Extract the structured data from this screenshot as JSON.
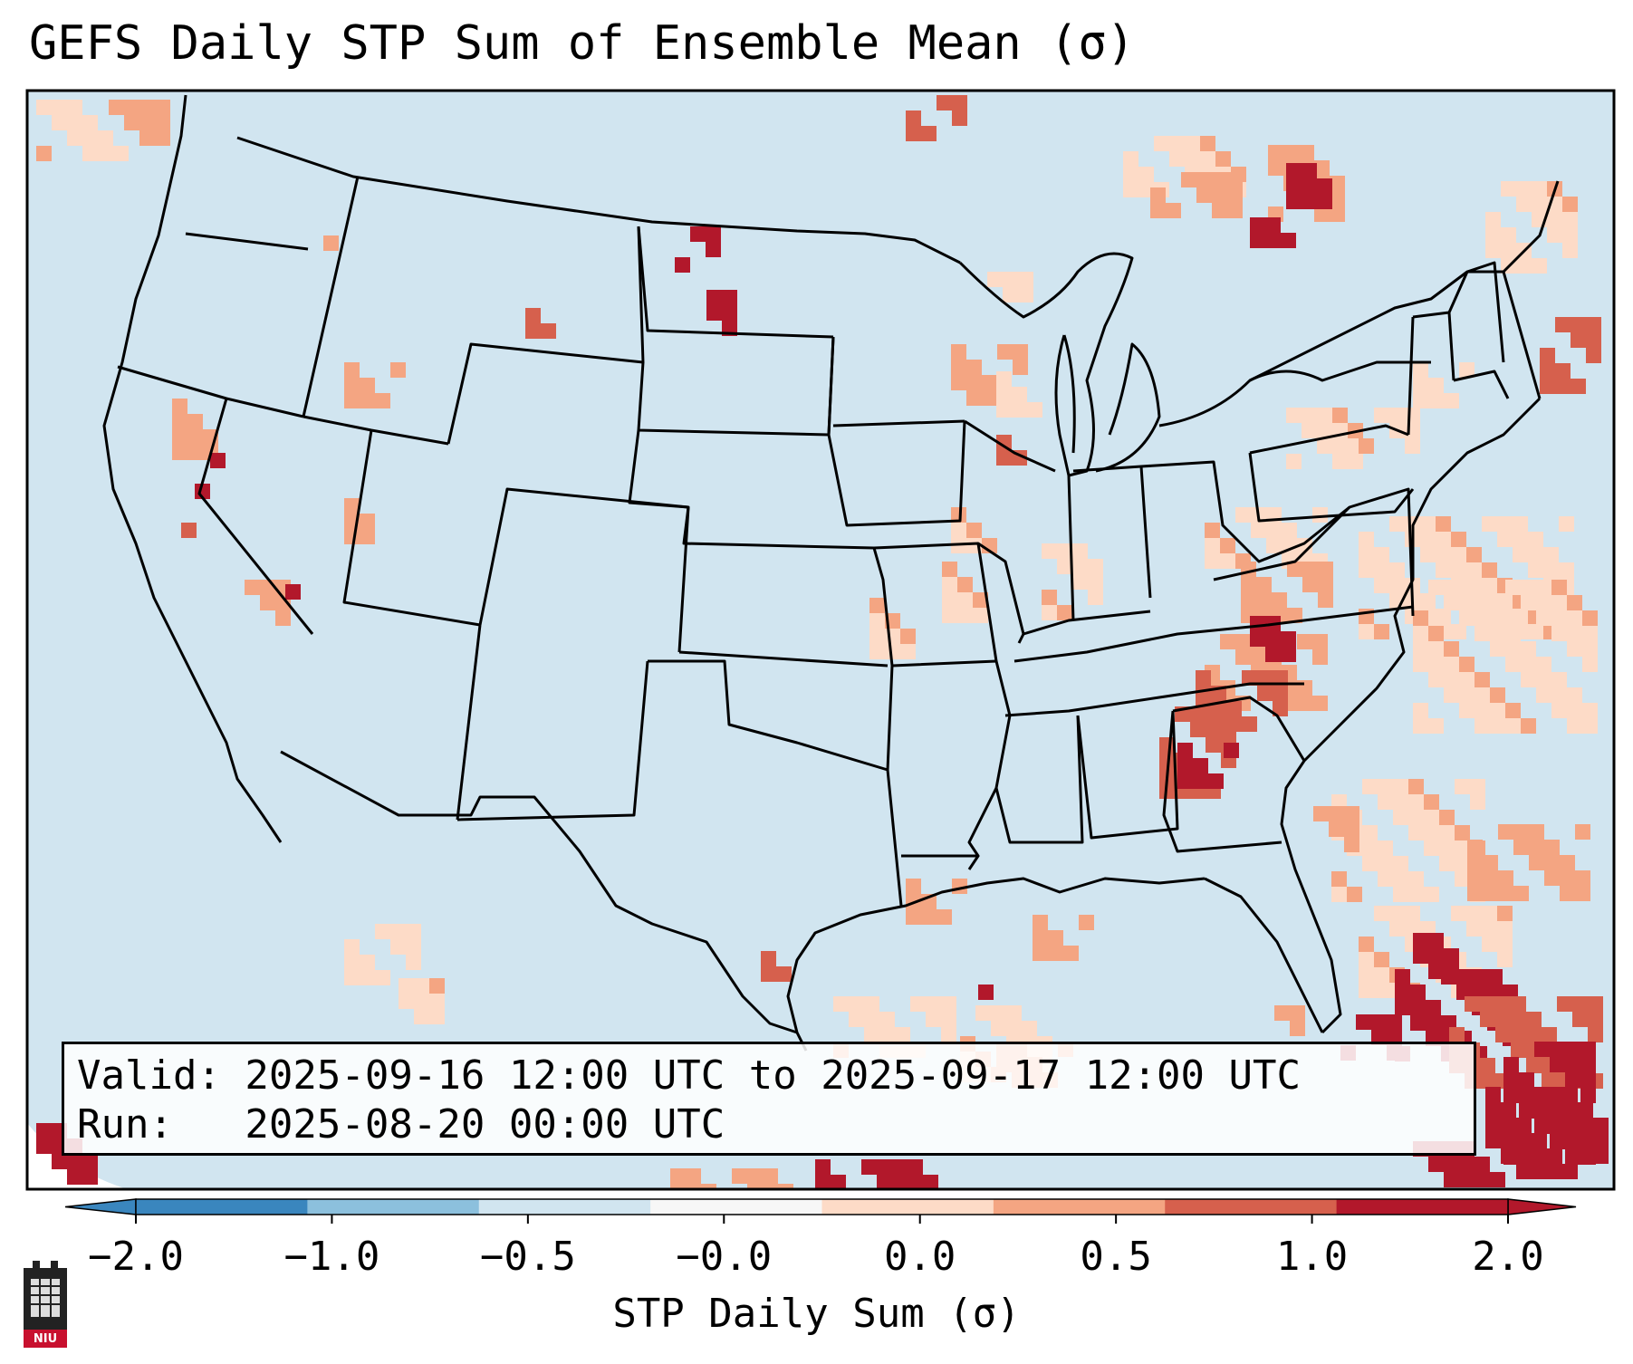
{
  "title": "GEFS Daily STP Sum of Ensemble Mean (σ)",
  "info": {
    "valid_line": "Valid: 2025-09-16 12:00 UTC to 2025-09-17 12:00 UTC",
    "run_line": "Run:   2025-08-20 00:00 UTC"
  },
  "colorbar": {
    "label": "STP Daily Sum (σ)",
    "ticks": [
      "−2.0",
      "−1.0",
      "−0.5",
      "−0.0",
      "0.0",
      "0.5",
      "1.0",
      "2.0"
    ],
    "colors": [
      "#3a86be",
      "#8cc0dd",
      "#d1e5f0",
      "#f7f7f7",
      "#fddbc7",
      "#f4a582",
      "#d6604d",
      "#b2182b"
    ],
    "extend": "both"
  },
  "map": {
    "background_color": "#d1e5f0",
    "region": "Contiguous United States",
    "overlay": "states and coastlines"
  },
  "logo": {
    "text": "NIU"
  }
}
